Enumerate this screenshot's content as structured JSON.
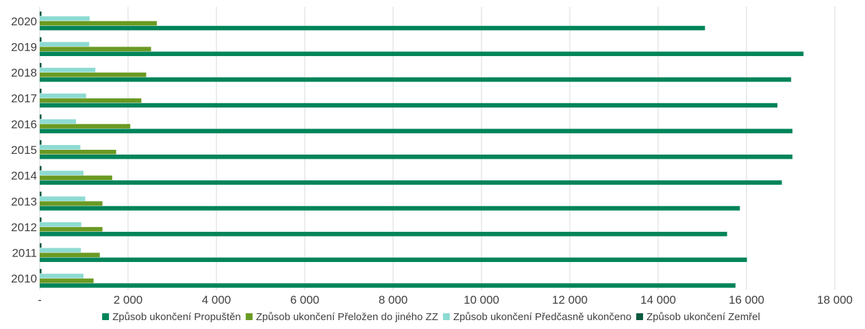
{
  "chart_data": {
    "type": "bar",
    "orientation": "horizontal",
    "categories": [
      "2020",
      "2019",
      "2018",
      "2017",
      "2016",
      "2015",
      "2014",
      "2013",
      "2012",
      "2011",
      "2010"
    ],
    "series": [
      {
        "name": "Způsob ukončení Propuštěn",
        "color": "#00845a",
        "values": [
          15060,
          17290,
          17010,
          16700,
          17040,
          17040,
          16800,
          15850,
          15560,
          16010,
          15750
        ]
      },
      {
        "name": "Způsob ukončení Přeložen do jiného ZZ",
        "color": "#6a9a23",
        "values": [
          2650,
          2520,
          2410,
          2300,
          2050,
          1730,
          1640,
          1420,
          1420,
          1360,
          1220
        ]
      },
      {
        "name": "Způsob ukončení Předčasně ukončeno",
        "color": "#8ddbd3",
        "values": [
          1130,
          1120,
          1260,
          1050,
          820,
          920,
          990,
          1030,
          940,
          930,
          990
        ]
      },
      {
        "name": "Způsob ukončení Zemřel",
        "color": "#0b5a3f",
        "values": [
          40,
          40,
          40,
          40,
          40,
          40,
          40,
          40,
          40,
          40,
          40
        ]
      }
    ],
    "xlim": [
      0,
      18000
    ],
    "x_ticks": [
      0,
      2000,
      4000,
      6000,
      8000,
      10000,
      12000,
      14000,
      16000,
      18000
    ],
    "x_tick_labels": [
      "-",
      "2 000",
      "4 000",
      "6 000",
      "8 000",
      "10 000",
      "12 000",
      "14 000",
      "16 000",
      "18 000"
    ],
    "grid": true,
    "legend_position": "bottom"
  }
}
